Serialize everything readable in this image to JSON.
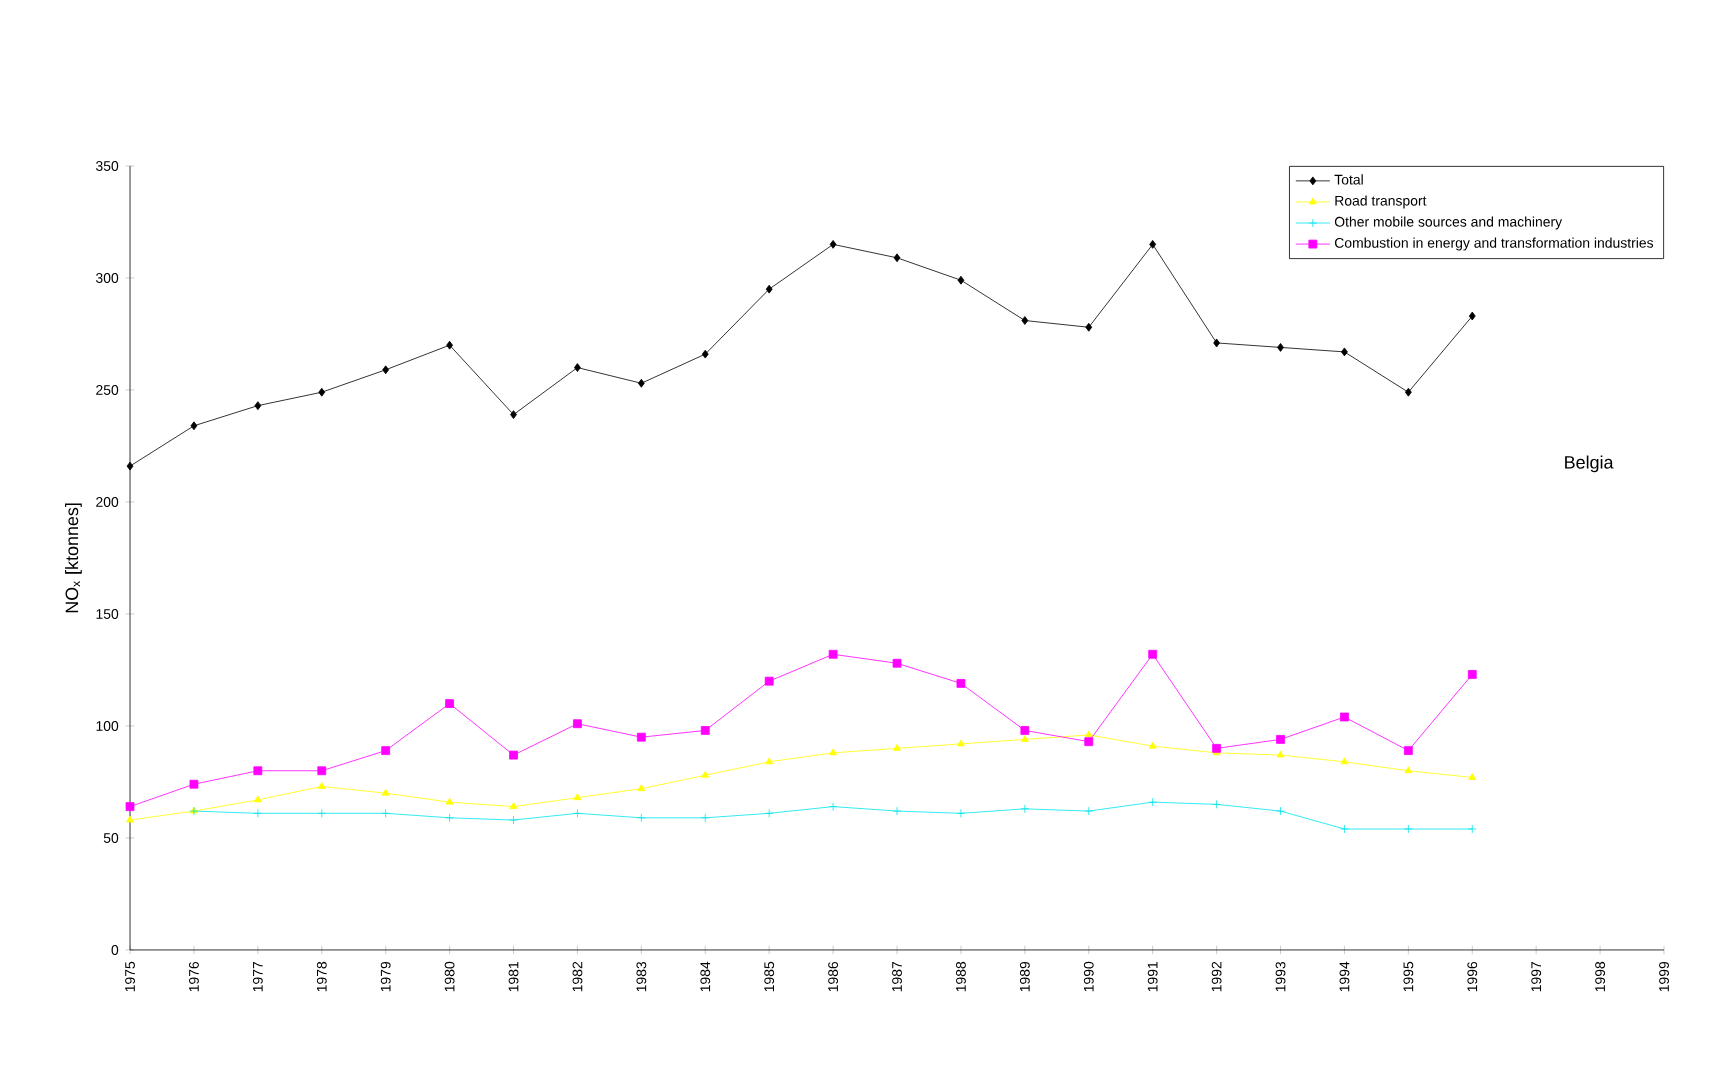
{
  "chart_data": {
    "type": "line",
    "ylabel": "NO$_{x}$ [ktonnes]",
    "x": [
      1975,
      1976,
      1977,
      1978,
      1979,
      1980,
      1981,
      1982,
      1983,
      1984,
      1985,
      1986,
      1987,
      1988,
      1989,
      1990,
      1991,
      1992,
      1993,
      1994,
      1995,
      1996
    ],
    "series": [
      {
        "name": "Total",
        "color": "#000000",
        "marker": "diamond",
        "values": [
          216,
          234,
          243,
          249,
          259,
          270,
          239,
          260,
          253,
          266,
          295,
          315,
          309,
          299,
          281,
          278,
          315,
          271,
          269,
          267,
          249,
          283
        ]
      },
      {
        "name": "Road transport",
        "color": "#ffff00",
        "marker": "triangle",
        "values": [
          58,
          62,
          67,
          73,
          70,
          66,
          64,
          68,
          72,
          78,
          84,
          88,
          90,
          92,
          94,
          96,
          91,
          88,
          87,
          84,
          80,
          77
        ]
      },
      {
        "name": "Other mobile sources and machinery",
        "color": "#00e5ee",
        "marker": "cross",
        "values": [
          null,
          62,
          61,
          61,
          61,
          59,
          58,
          61,
          59,
          59,
          61,
          64,
          62,
          61,
          63,
          62,
          66,
          65,
          62,
          54,
          54,
          54
        ]
      },
      {
        "name": "Combustion in energy and transformation industries",
        "color": "#ff00ff",
        "marker": "square",
        "values": [
          64,
          74,
          80,
          80,
          89,
          110,
          87,
          101,
          95,
          98,
          120,
          132,
          128,
          119,
          98,
          93,
          132,
          90,
          94,
          104,
          89,
          123
        ]
      }
    ],
    "xlim": [
      1975,
      1999
    ],
    "xticks": [
      1975,
      1976,
      1977,
      1978,
      1979,
      1980,
      1981,
      1982,
      1983,
      1984,
      1985,
      1986,
      1987,
      1988,
      1989,
      1990,
      1991,
      1992,
      1993,
      1994,
      1995,
      1996,
      1997,
      1998,
      1999
    ],
    "ylim": [
      0,
      350
    ],
    "yticks": [
      0,
      50,
      100,
      150,
      200,
      250,
      300,
      350
    ],
    "grid": false,
    "legend": "top right",
    "line_style": "solid",
    "annotations": [
      "Belgia"
    ]
  }
}
